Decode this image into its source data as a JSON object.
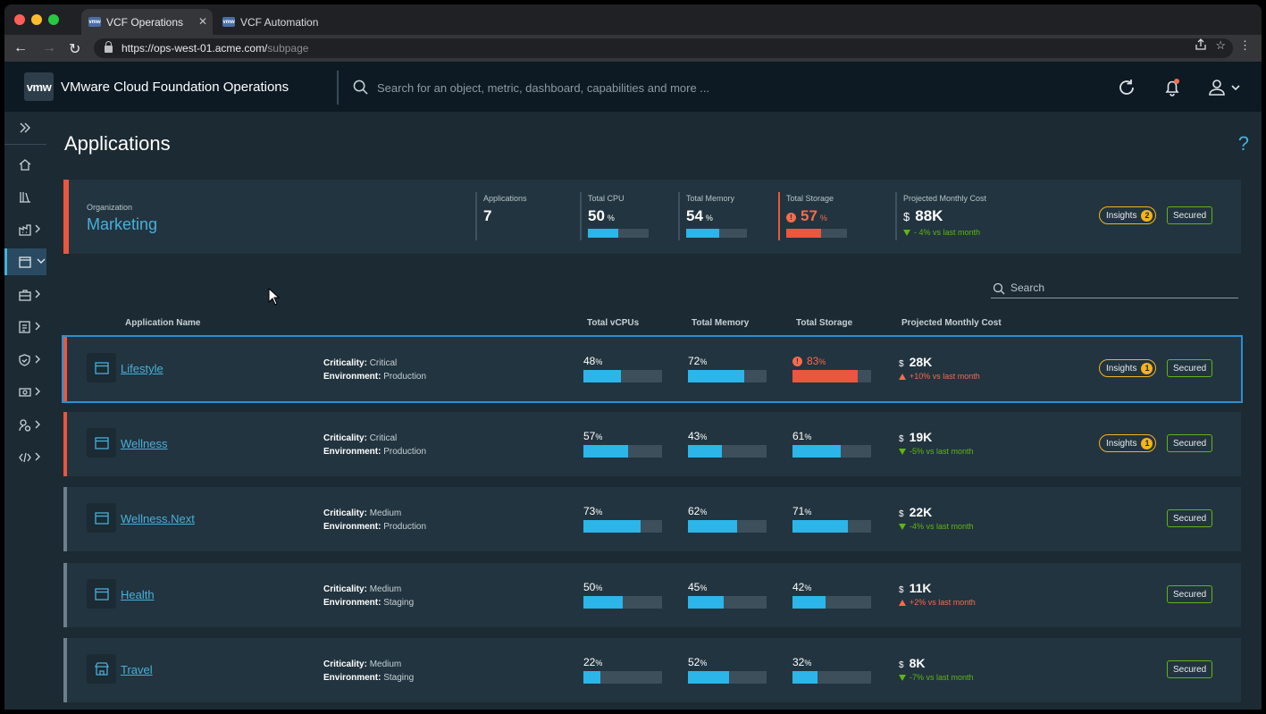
{
  "browser": {
    "tabs": [
      {
        "label": "VCF Operations",
        "favicon": "vmw"
      },
      {
        "label": "VCF Automation",
        "favicon": "vmw"
      }
    ],
    "url_host": "https://ops-west-01.acme.com/",
    "url_path": "subpage"
  },
  "header": {
    "logo": "vmw",
    "title": "VMware Cloud Foundation Operations",
    "search_placeholder": "Search for an object, metric, dashboard, capabilities and more ..."
  },
  "page": {
    "title": "Applications",
    "help": "?"
  },
  "summary": {
    "org_label": "Organization",
    "org_name": "Marketing",
    "applications": {
      "label": "Applications",
      "value": "7"
    },
    "cpu": {
      "label": "Total CPU",
      "value": "50",
      "unit": "%",
      "level": 50
    },
    "memory": {
      "label": "Total Memory",
      "value": "54",
      "unit": "%",
      "level": 54
    },
    "storage": {
      "label": "Total Storage",
      "value": "57",
      "unit": "%",
      "level": 57,
      "alert": true
    },
    "cost": {
      "label": "Projected Monthly Cost",
      "currency": "$",
      "value": "88K",
      "trend": "- 4% vs last month",
      "direction": "down"
    },
    "insights": {
      "label": "Insights",
      "count": "2"
    },
    "secured": "Secured"
  },
  "table": {
    "search_placeholder": "Search",
    "columns": {
      "name": "Application Name",
      "vcpu": "Total vCPUs",
      "memory": "Total Memory",
      "storage": "Total Storage",
      "cost": "Projected Monthly Cost"
    },
    "crit_label": "Criticality:",
    "env_label": "Environment:",
    "rows": [
      {
        "name": "Lifestyle",
        "icon": "window-icon",
        "criticality": "Critical",
        "environment": "Production",
        "vcpu": "48",
        "vcpu_level": 48,
        "memory": "72",
        "memory_level": 72,
        "storage": "83",
        "storage_level": 83,
        "storage_alert": true,
        "cost": "28K",
        "trend": "+10% vs last month",
        "direction": "up",
        "insights": "1",
        "secured": "Secured"
      },
      {
        "name": "Wellness",
        "icon": "window-icon",
        "criticality": "Critical",
        "environment": "Production",
        "vcpu": "57",
        "vcpu_level": 57,
        "memory": "43",
        "memory_level": 43,
        "storage": "61",
        "storage_level": 61,
        "storage_alert": false,
        "cost": "19K",
        "trend": "-5% vs last month",
        "direction": "down",
        "insights": "1",
        "secured": "Secured"
      },
      {
        "name": "Wellness.Next",
        "icon": "window-icon",
        "criticality": "Medium",
        "environment": "Production",
        "vcpu": "73",
        "vcpu_level": 73,
        "memory": "62",
        "memory_level": 62,
        "storage": "71",
        "storage_level": 71,
        "storage_alert": false,
        "cost": "22K",
        "trend": "-4% vs last month",
        "direction": "down",
        "insights": null,
        "secured": "Secured"
      },
      {
        "name": "Health",
        "icon": "window-icon",
        "criticality": "Medium",
        "environment": "Staging",
        "vcpu": "50",
        "vcpu_level": 50,
        "memory": "45",
        "memory_level": 45,
        "storage": "42",
        "storage_level": 42,
        "storage_alert": false,
        "cost": "11K",
        "trend": "+2% vs last month",
        "direction": "up",
        "insights": null,
        "secured": "Secured"
      },
      {
        "name": "Travel",
        "icon": "store-icon",
        "criticality": "Medium",
        "environment": "Staging",
        "vcpu": "22",
        "vcpu_level": 22,
        "memory": "52",
        "memory_level": 52,
        "storage": "32",
        "storage_level": 32,
        "storage_alert": false,
        "cost": "8K",
        "trend": "-7% vs last month",
        "direction": "down",
        "insights": null,
        "secured": "Secured"
      }
    ]
  },
  "colors": {
    "accent": "#49afd9",
    "alert": "#e9573e",
    "ok": "#60b515",
    "warning": "#f5b31c",
    "bar": "#2cb5e8"
  }
}
